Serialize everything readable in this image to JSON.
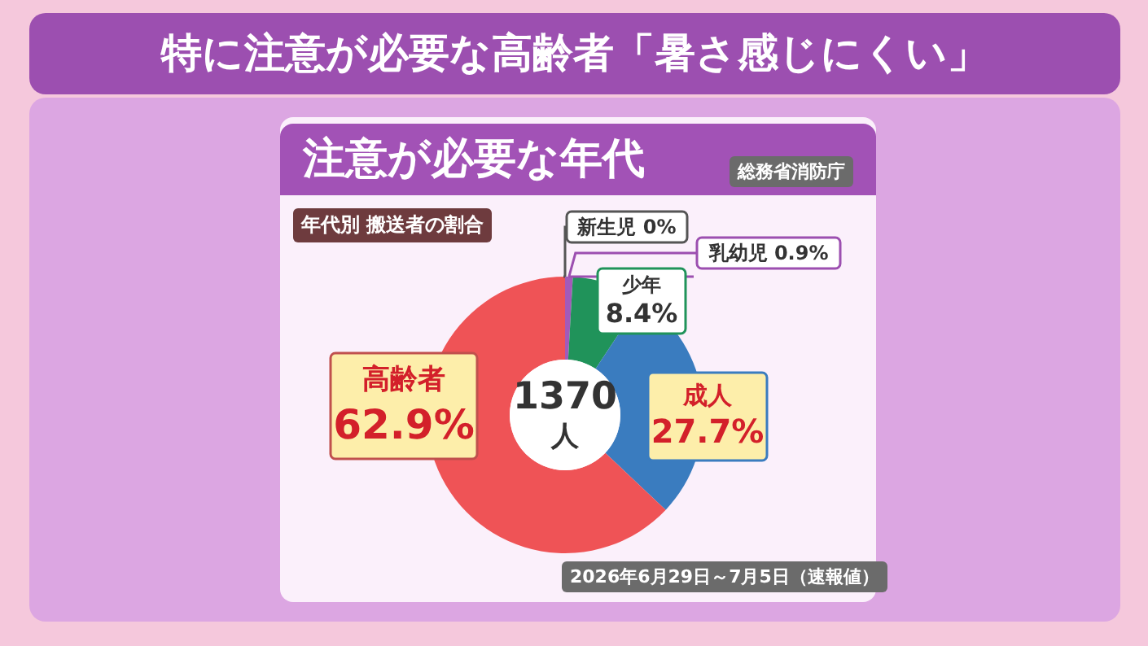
{
  "chart_data": {
    "type": "donut",
    "title": "特に注意が必要な高齢者「暑さ感じにくい」",
    "subtitle": "注意が必要な年代",
    "categories": [
      "新生児",
      "乳幼児",
      "少年",
      "成人",
      "高齢者"
    ],
    "values": [
      0,
      0.9,
      8.4,
      27.7,
      62.9
    ],
    "value_labels": [
      "0%",
      "0.9%",
      "8.4%",
      "27.7%",
      "62.9%"
    ],
    "colors": [
      "#e0e0e0",
      "#a35ab9",
      "#20935a",
      "#3a7cbf",
      "#ef5356"
    ],
    "legend": false,
    "annotations": [
      "総務省消防庁",
      "年代別 搬送者の割合",
      "2026年6月29日～7月5日（速報値）",
      "1370\n人"
    ]
  }
}
